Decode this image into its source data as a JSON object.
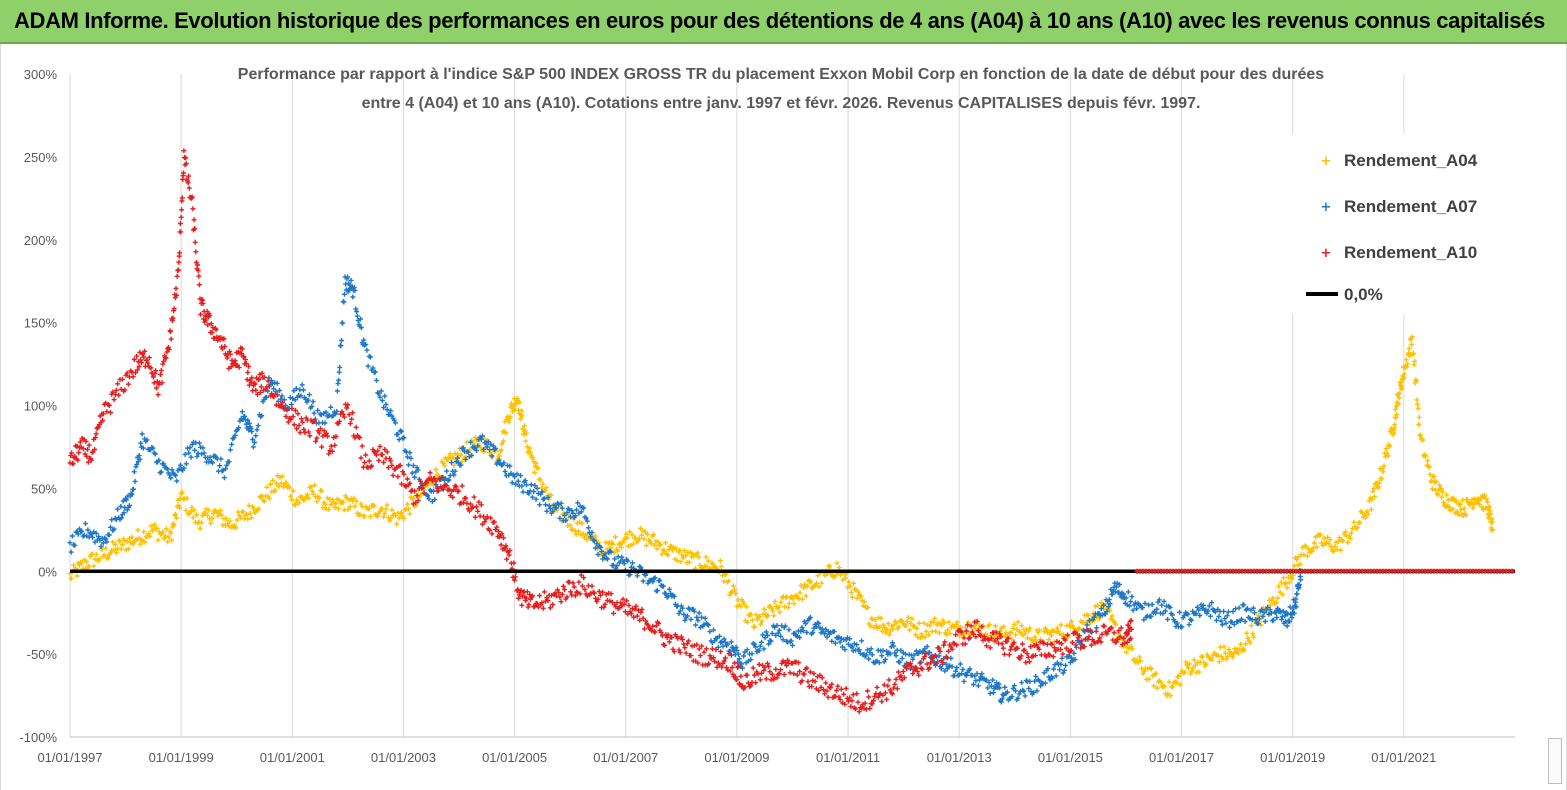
{
  "banner": {
    "title": "ADAM Informe. Evolution historique des performances en euros pour des détentions de 4 ans (A04) à 10 ans (A10) avec les revenus connus capitalisés",
    "background": "#8fd06a"
  },
  "chart_data": {
    "type": "scatter",
    "title_lines": [
      "Performance par rapport à l'indice S&P 500 INDEX GROSS TR  du placement Exxon Mobil Corp en fonction de la date de début pour des durées",
      "entre 4 (A04) et 10 ans (A10). Cotations entre janv. 1997 et févr. 2026. Revenus CAPITALISES depuis févr. 1997."
    ],
    "xlabel": "",
    "ylabel": "",
    "xlim": [
      1997.0,
      2023.0
    ],
    "ylim": [
      -100,
      300
    ],
    "y_ticks": [
      "300%",
      "250%",
      "200%",
      "150%",
      "100%",
      "50%",
      "0%",
      "-50%",
      "-100%"
    ],
    "y_tick_values": [
      300,
      250,
      200,
      150,
      100,
      50,
      0,
      -50,
      -100
    ],
    "x_ticks": [
      "01/01/1997",
      "01/01/1999",
      "01/01/2001",
      "01/01/2003",
      "01/01/2005",
      "01/01/2007",
      "01/01/2009",
      "01/01/2011",
      "01/01/2013",
      "01/01/2015",
      "01/01/2017",
      "01/01/2019",
      "01/01/2021"
    ],
    "x_tick_values": [
      1997,
      1999,
      2001,
      2003,
      2005,
      2007,
      2009,
      2011,
      2013,
      2015,
      2017,
      2019,
      2021
    ],
    "grid": "vertical",
    "legend_position": "top-right",
    "reference_line": {
      "name": "0,0%",
      "value": 0,
      "color": "#000000"
    },
    "series": [
      {
        "name": "Rendement_A04",
        "color": "#ffc000",
        "marker": "+",
        "x": [
          1997.0,
          1997.3,
          1997.6,
          1997.9,
          1998.2,
          1998.5,
          1998.8,
          1999.0,
          1999.3,
          1999.6,
          1999.9,
          2000.2,
          2000.5,
          2000.8,
          2001.1,
          2001.4,
          2001.7,
          2002.0,
          2002.3,
          2002.6,
          2002.9,
          2003.2,
          2003.5,
          2003.8,
          2004.1,
          2004.4,
          2004.7,
          2004.9,
          2005.05,
          2005.2,
          2005.4,
          2005.7,
          2006.0,
          2006.3,
          2006.6,
          2006.9,
          2007.2,
          2007.5,
          2007.8,
          2008.1,
          2008.4,
          2008.7,
          2009.0,
          2009.3,
          2009.6,
          2009.9,
          2010.2,
          2010.5,
          2010.8,
          2011.1,
          2011.4,
          2011.7,
          2012.0,
          2012.3,
          2012.6,
          2012.9,
          2013.2,
          2013.5,
          2013.8,
          2014.1,
          2014.4,
          2014.7,
          2015.0,
          2015.3,
          2015.6,
          2015.9,
          2016.2,
          2016.5,
          2016.8,
          2017.1,
          2017.4,
          2017.7,
          2018.0,
          2018.3,
          2018.6,
          2018.9,
          2019.2,
          2019.5,
          2019.8,
          2020.1,
          2020.4,
          2020.6,
          2020.8,
          2020.9,
          2021.0,
          2021.15,
          2021.3,
          2021.5,
          2021.7,
          2021.9,
          2022.1,
          2022.3,
          2022.5,
          2022.6
        ],
        "values": [
          -3,
          5,
          10,
          15,
          20,
          25,
          20,
          45,
          30,
          35,
          28,
          35,
          45,
          55,
          42,
          48,
          38,
          42,
          35,
          38,
          32,
          42,
          55,
          65,
          72,
          78,
          70,
          95,
          105,
          80,
          60,
          38,
          30,
          22,
          12,
          18,
          22,
          18,
          12,
          8,
          5,
          2,
          -18,
          -32,
          -25,
          -18,
          -12,
          -5,
          2,
          -12,
          -28,
          -34,
          -30,
          -36,
          -32,
          -35,
          -33,
          -36,
          -38,
          -35,
          -40,
          -38,
          -35,
          -28,
          -22,
          -40,
          -55,
          -65,
          -72,
          -58,
          -55,
          -50,
          -50,
          -35,
          -20,
          -5,
          12,
          18,
          15,
          25,
          40,
          60,
          85,
          105,
          120,
          140,
          80,
          55,
          45,
          40,
          38,
          45,
          40,
          25
        ]
      },
      {
        "name": "Rendement_A07",
        "color": "#1f77c8",
        "marker": "+",
        "x": [
          1997.0,
          1997.3,
          1997.6,
          1997.9,
          1998.1,
          1998.3,
          1998.6,
          1998.9,
          1999.2,
          1999.5,
          1999.8,
          2000.1,
          2000.3,
          2000.6,
          2000.9,
          2001.2,
          2001.5,
          2001.8,
          2001.95,
          2002.1,
          2002.3,
          2002.6,
          2002.9,
          2003.2,
          2003.5,
          2003.8,
          2004.1,
          2004.4,
          2004.7,
          2005.0,
          2005.3,
          2005.6,
          2005.9,
          2006.2,
          2006.5,
          2006.8,
          2007.1,
          2007.4,
          2007.7,
          2008.0,
          2008.3,
          2008.6,
          2008.9,
          2009.1,
          2009.4,
          2009.7,
          2010.0,
          2010.3,
          2010.6,
          2010.9,
          2011.2,
          2011.5,
          2011.8,
          2012.1,
          2012.4,
          2012.7,
          2013.0,
          2013.3,
          2013.6,
          2013.8,
          2014.1,
          2014.4,
          2014.7,
          2015.0,
          2015.3,
          2015.6,
          2015.8,
          2016.0,
          2016.3,
          2016.6,
          2016.9,
          2017.2,
          2017.5,
          2017.8,
          2018.1,
          2018.4,
          2018.7,
          2018.9,
          2019.05,
          2019.15
        ],
        "values": [
          15,
          25,
          18,
          35,
          45,
          80,
          65,
          55,
          75,
          70,
          60,
          95,
          80,
          115,
          100,
          110,
          90,
          100,
          175,
          170,
          135,
          105,
          85,
          60,
          45,
          58,
          72,
          78,
          68,
          55,
          50,
          40,
          35,
          38,
          15,
          5,
          2,
          -5,
          -10,
          -25,
          -28,
          -40,
          -45,
          -55,
          -45,
          -35,
          -40,
          -32,
          -38,
          -42,
          -45,
          -52,
          -48,
          -55,
          -50,
          -55,
          -60,
          -65,
          -70,
          -75,
          -72,
          -68,
          -60,
          -55,
          -35,
          -25,
          -10,
          -15,
          -25,
          -20,
          -30,
          -28,
          -22,
          -30,
          -25,
          -28,
          -25,
          -30,
          -20,
          0
        ]
      },
      {
        "name": "Rendement_A10",
        "color": "#e61e1e",
        "marker": "+",
        "x": [
          1997.0,
          1997.2,
          1997.4,
          1997.6,
          1997.9,
          1998.2,
          1998.4,
          1998.6,
          1998.8,
          1998.95,
          1999.05,
          1999.2,
          1999.35,
          1999.5,
          1999.7,
          1999.9,
          2000.1,
          2000.3,
          2000.5,
          2000.8,
          2001.1,
          2001.4,
          2001.7,
          2002.0,
          2002.3,
          2002.6,
          2002.9,
          2003.2,
          2003.5,
          2003.8,
          2004.1,
          2004.4,
          2004.7,
          2004.9,
          2005.1,
          2005.3,
          2005.6,
          2005.9,
          2006.2,
          2006.5,
          2006.8,
          2007.1,
          2007.4,
          2007.7,
          2008.0,
          2008.3,
          2008.6,
          2008.9,
          2009.1,
          2009.4,
          2009.7,
          2010.0,
          2010.3,
          2010.6,
          2010.9,
          2011.2,
          2011.5,
          2011.8,
          2012.1,
          2012.4,
          2012.7,
          2013.0,
          2013.3,
          2013.6,
          2013.9,
          2014.2,
          2014.5,
          2014.8,
          2015.1,
          2015.4,
          2015.7,
          2016.0,
          2016.1
        ],
        "values": [
          65,
          75,
          70,
          95,
          110,
          125,
          130,
          110,
          140,
          180,
          250,
          220,
          160,
          150,
          140,
          125,
          130,
          110,
          115,
          100,
          90,
          85,
          75,
          100,
          65,
          70,
          60,
          45,
          55,
          50,
          45,
          35,
          25,
          10,
          -15,
          -20,
          -18,
          -12,
          -8,
          -15,
          -20,
          -25,
          -30,
          -40,
          -45,
          -50,
          -52,
          -55,
          -68,
          -62,
          -60,
          -58,
          -65,
          -70,
          -75,
          -80,
          -75,
          -70,
          -60,
          -55,
          -50,
          -40,
          -35,
          -42,
          -45,
          -50,
          -48,
          -45,
          -42,
          -40,
          -38,
          -40,
          -35
        ]
      }
    ],
    "a10_after_2016_value": 0
  }
}
